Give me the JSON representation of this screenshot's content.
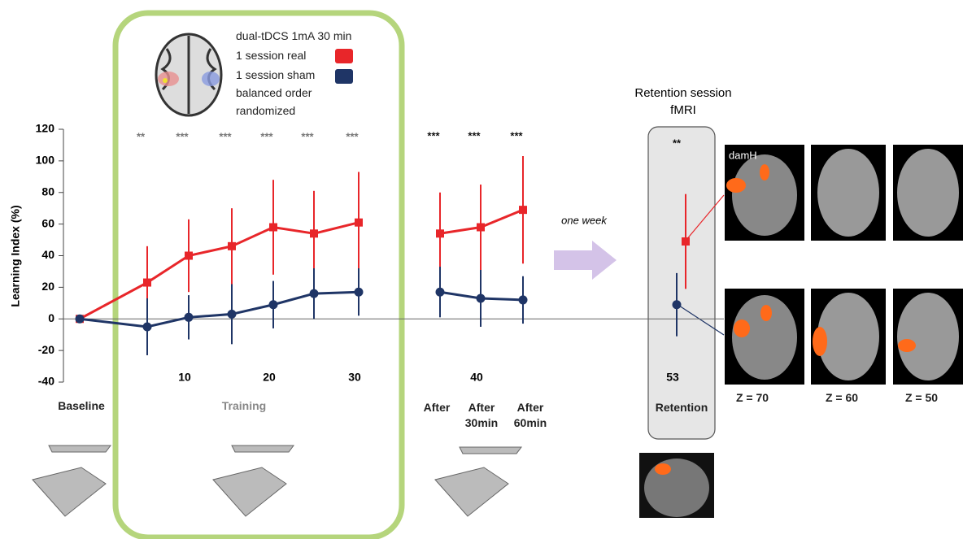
{
  "chart_data": {
    "type": "line",
    "ylabel": "Learning Index (%)",
    "ylim": [
      -40,
      120
    ],
    "yticks": [
      -40,
      -20,
      0,
      20,
      40,
      60,
      80,
      100,
      120
    ],
    "categories": [
      null,
      null,
      "10",
      null,
      "20",
      null,
      "30",
      null,
      "40",
      null,
      "53"
    ],
    "series": [
      {
        "name": "1 session real",
        "color": "#e8262a",
        "marker": "square",
        "values": [
          0,
          23,
          40,
          46,
          58,
          54,
          61,
          54,
          58,
          69,
          49
        ],
        "errors": [
          0,
          23,
          23,
          24,
          30,
          27,
          32,
          26,
          27,
          34,
          30
        ]
      },
      {
        "name": "1 session sham",
        "color": "#1f3566",
        "marker": "circle",
        "values": [
          0,
          -5,
          1,
          3,
          9,
          16,
          17,
          17,
          13,
          12,
          9
        ],
        "errors": [
          0,
          18,
          14,
          19,
          15,
          16,
          15,
          16,
          18,
          15,
          20
        ]
      }
    ],
    "significance": [
      null,
      "**",
      "***",
      "***",
      "***",
      "***",
      "***",
      "***",
      "***",
      "***",
      "**"
    ],
    "legend_title": "dual-tDCS 1mA 30 min",
    "legend_notes": [
      "balanced order",
      "randomized"
    ],
    "phase_labels": [
      "Baseline",
      "Training",
      "After",
      "After 30min",
      "After 60min",
      "Retention"
    ],
    "retention_title": "Retention session",
    "retention_subtitle": "fMRI",
    "interval_label": "one week",
    "brain_labels": {
      "contrast": "damH",
      "slices": [
        "Z = 70",
        "Z = 60",
        "Z = 50"
      ]
    }
  }
}
